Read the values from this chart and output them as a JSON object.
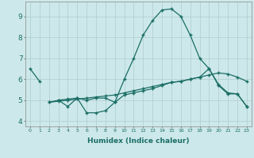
{
  "xlabel": "Humidex (Indice chaleur)",
  "bg_color": "#cde8eb",
  "grid_color": "#b0cccc",
  "line_color": "#1a6e65",
  "x_ticks": [
    0,
    1,
    2,
    3,
    4,
    5,
    6,
    7,
    8,
    9,
    10,
    11,
    12,
    13,
    14,
    15,
    16,
    17,
    18,
    19,
    20,
    21,
    22,
    23
  ],
  "y_ticks": [
    4,
    5,
    6,
    7,
    8,
    9
  ],
  "xlim": [
    -0.5,
    23.5
  ],
  "ylim": [
    3.75,
    9.7
  ],
  "series1_x": [
    0,
    1,
    2,
    3,
    4,
    5,
    6,
    7,
    8,
    9,
    10,
    11,
    12,
    13,
    14,
    15,
    16,
    17,
    18,
    19,
    20,
    21,
    22,
    23
  ],
  "series1_y": [
    6.5,
    5.9,
    null,
    5.0,
    4.7,
    5.1,
    4.4,
    4.4,
    4.5,
    4.9,
    6.0,
    7.0,
    8.1,
    8.8,
    9.3,
    9.35,
    9.0,
    8.1,
    7.0,
    6.5,
    5.7,
    5.3,
    5.3,
    4.7
  ],
  "series2_x": [
    2,
    3,
    4,
    5,
    6,
    7,
    8,
    9,
    10,
    11,
    12,
    13,
    14,
    15,
    16,
    17,
    18,
    19,
    20,
    21,
    22,
    23
  ],
  "series2_y": [
    4.9,
    4.95,
    5.0,
    5.05,
    5.1,
    5.15,
    5.2,
    5.25,
    5.35,
    5.45,
    5.55,
    5.65,
    5.75,
    5.85,
    5.9,
    6.0,
    6.1,
    6.2,
    6.3,
    6.25,
    6.1,
    5.9
  ],
  "series3_x": [
    2,
    3,
    4,
    5,
    6,
    7,
    8,
    9,
    10,
    11,
    12,
    13,
    14,
    15,
    16,
    17,
    18,
    19,
    20,
    21,
    22,
    23
  ],
  "series3_y": [
    4.9,
    5.0,
    5.05,
    5.1,
    5.0,
    5.1,
    5.1,
    4.9,
    5.25,
    5.35,
    5.45,
    5.55,
    5.7,
    5.85,
    5.9,
    6.0,
    6.1,
    6.5,
    5.75,
    5.35,
    5.3,
    4.7
  ]
}
